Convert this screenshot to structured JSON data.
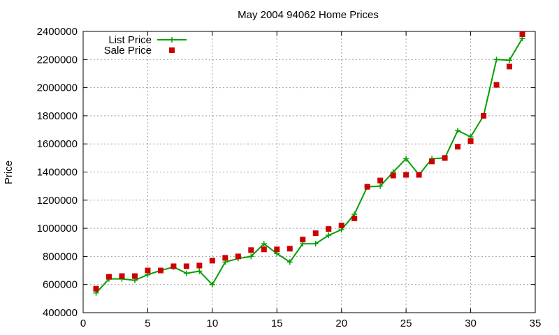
{
  "chart_data": {
    "type": "line",
    "title": "May 2004 94062 Home Prices",
    "xlabel": "",
    "ylabel": "Price",
    "xlim": [
      0,
      35
    ],
    "ylim": [
      400000,
      2400000
    ],
    "xticks": [
      0,
      5,
      10,
      15,
      20,
      25,
      30,
      35
    ],
    "yticks": [
      400000,
      600000,
      800000,
      1000000,
      1200000,
      1400000,
      1600000,
      1800000,
      2000000,
      2200000,
      2400000
    ],
    "grid": true,
    "legend_position": "top-left",
    "series": [
      {
        "name": "List Price",
        "style": "lines-points",
        "color": "#00a000",
        "marker": "plus",
        "x": [
          1,
          2,
          3,
          4,
          5,
          6,
          7,
          8,
          9,
          10,
          11,
          12,
          13,
          14,
          15,
          16,
          17,
          18,
          19,
          20,
          21,
          22,
          23,
          24,
          25,
          26,
          27,
          28,
          29,
          30,
          31,
          32,
          33,
          34
        ],
        "y": [
          540000,
          640000,
          640000,
          630000,
          670000,
          700000,
          725000,
          680000,
          695000,
          600000,
          760000,
          785000,
          800000,
          890000,
          820000,
          760000,
          890000,
          890000,
          950000,
          990000,
          1100000,
          1295000,
          1300000,
          1400000,
          1495000,
          1380000,
          1495000,
          1500000,
          1695000,
          1650000,
          1800000,
          2200000,
          2195000,
          2350000
        ]
      },
      {
        "name": "Sale Price",
        "style": "points",
        "color": "#cc0000",
        "marker": "square",
        "x": [
          1,
          2,
          3,
          4,
          5,
          6,
          7,
          8,
          9,
          10,
          11,
          12,
          13,
          14,
          15,
          16,
          17,
          18,
          19,
          20,
          21,
          22,
          23,
          24,
          25,
          26,
          27,
          28,
          29,
          30,
          31,
          32,
          33,
          34
        ],
        "y": [
          570000,
          655000,
          660000,
          660000,
          700000,
          700000,
          730000,
          730000,
          735000,
          770000,
          790000,
          800000,
          845000,
          850000,
          850000,
          855000,
          920000,
          965000,
          995000,
          1020000,
          1070000,
          1295000,
          1340000,
          1375000,
          1380000,
          1380000,
          1475000,
          1500000,
          1580000,
          1620000,
          1800000,
          2020000,
          2150000,
          2380000
        ]
      }
    ]
  }
}
